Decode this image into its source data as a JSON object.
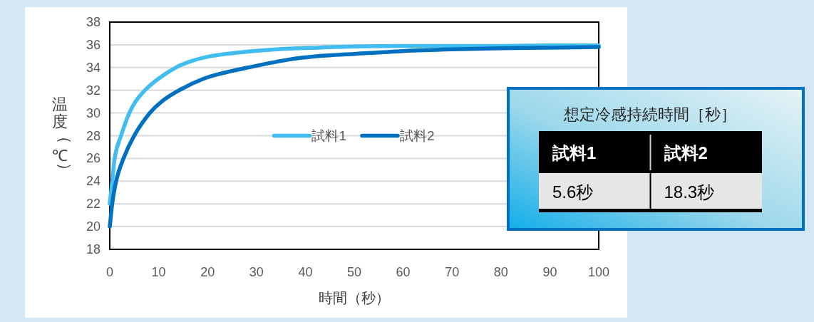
{
  "chart_data": [
    {
      "type": "line",
      "xlabel": "時間（秒）",
      "ylabel": "温度（℃）",
      "xlim": [
        0,
        100
      ],
      "ylim": [
        18,
        38
      ],
      "xticks": [
        0,
        10,
        20,
        30,
        40,
        50,
        60,
        70,
        80,
        90,
        100
      ],
      "yticks": [
        18,
        20,
        22,
        24,
        26,
        28,
        30,
        32,
        34,
        36,
        38
      ],
      "grid": "y",
      "legend": "center",
      "series": [
        {
          "name": "試料1",
          "color": "#41bdf0",
          "x": [
            0,
            0.5,
            1,
            2.3,
            4,
            5.25,
            7.2,
            9.9,
            13.5,
            16.2,
            20.6,
            25.9,
            34.1,
            42.6,
            50,
            60,
            70,
            80,
            90,
            100
          ],
          "values": [
            22,
            24,
            26,
            28,
            30,
            31,
            32,
            33,
            34,
            34.5,
            35,
            35.3,
            35.6,
            35.75,
            35.85,
            35.9,
            35.9,
            35.9,
            35.95,
            35.95
          ]
        },
        {
          "name": "試料2",
          "color": "#0070c0",
          "x": [
            0,
            0.5,
            1.3,
            2.8,
            5,
            8.2,
            10.6,
            14.2,
            19.1,
            23,
            28.3,
            36.6,
            42.6,
            50,
            60,
            70,
            80,
            90,
            100
          ],
          "values": [
            20,
            22,
            24,
            26,
            28,
            30,
            31,
            32,
            33,
            33.5,
            34,
            34.7,
            35,
            35.2,
            35.45,
            35.6,
            35.7,
            35.75,
            35.8
          ]
        }
      ]
    },
    {
      "type": "other",
      "title": "想定冷感持続時間［秒］",
      "categories": [
        "試料1",
        "試料2"
      ],
      "annotations": [
        "5.6秒",
        "18.3秒"
      ]
    }
  ]
}
